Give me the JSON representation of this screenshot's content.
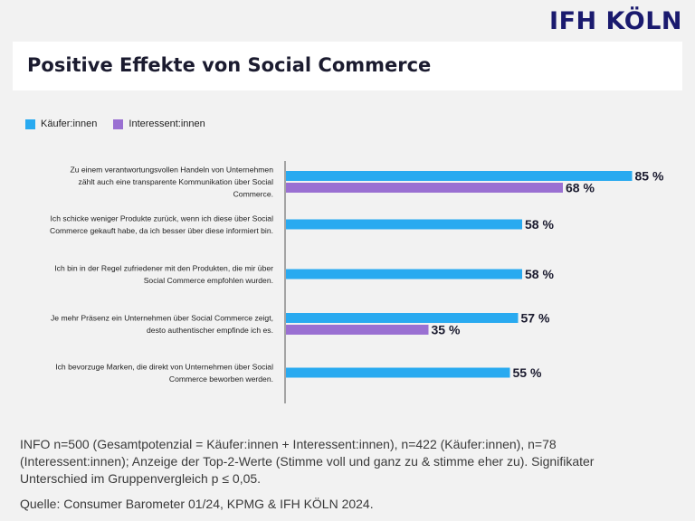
{
  "logo": "IFH KÖLN",
  "header": {
    "title": "Positive Effekte von Social Commerce"
  },
  "legend": [
    {
      "label": "Käufer:innen",
      "color": "#29aaf0"
    },
    {
      "label": "Interessent:innen",
      "color": "#9a70d2"
    }
  ],
  "chart_data": {
    "type": "bar",
    "orientation": "horizontal",
    "categories": [
      [
        "Zu einem verantwortungsvollen Handeln von Unternehmen",
        "zählt auch eine transparente Kommunikation über Social",
        "Commerce."
      ],
      [
        "Ich schicke weniger Produkte zurück, wenn ich diese über Social",
        "Commerce gekauft habe, da ich besser über diese informiert bin."
      ],
      [
        "Ich bin in der Regel zufriedener mit den Produkten, die mir über",
        "Social Commerce empfohlen wurden."
      ],
      [
        "Je mehr Präsenz ein Unternehmen über Social Commerce zeigt,",
        "desto authentischer empfinde ich es."
      ],
      [
        "Ich bevorzuge Marken, die direkt von Unternehmen über Social",
        "Commerce beworben werden."
      ]
    ],
    "series": [
      {
        "name": "Käufer:innen",
        "color": "#29aaf0",
        "values": [
          85,
          58,
          58,
          57,
          55
        ]
      },
      {
        "name": "Interessent:innen",
        "color": "#9a70d2",
        "values": [
          68,
          null,
          null,
          35,
          null
        ]
      }
    ],
    "value_suffix": " %",
    "xlim": [
      0,
      100
    ]
  },
  "footer": {
    "info": "INFO n=500 (Gesamtpotenzial = Käufer:innen + Interessent:innen), n=422 (Käufer:innen), n=78 (Interessent:innen); Anzeige der Top-2-Werte (Stimme voll und ganz zu & stimme eher zu). Signifikater Unterschied im Gruppenvergleich p ≤ 0,05.",
    "source": "Quelle: Consumer Barometer 01/24, KPMG & IFH KÖLN 2024."
  }
}
